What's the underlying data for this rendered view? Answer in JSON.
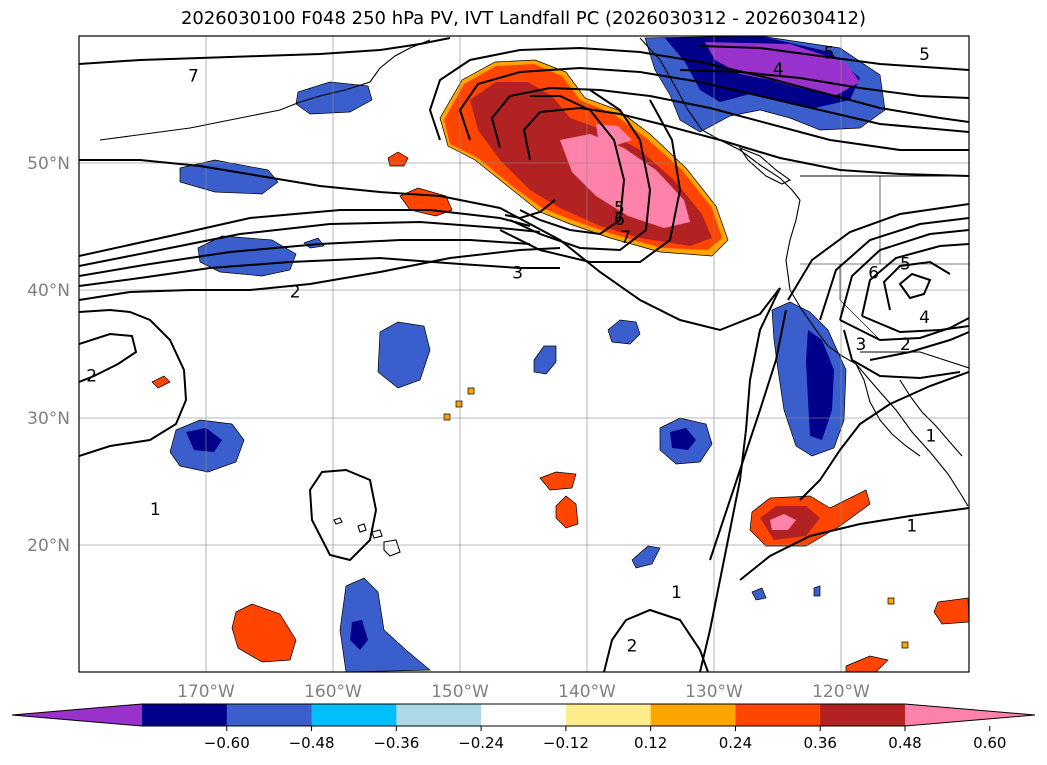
{
  "title": "2026030100 F048 250 hPa PV, IVT Landfall PC (2026030312 - 2026030412)",
  "map": {
    "lon_range": [
      180,
      110
    ],
    "lat_range": [
      10,
      60
    ],
    "lon_ticks": [
      {
        "lon": 170,
        "label": "170°W"
      },
      {
        "lon": 160,
        "label": "160°W"
      },
      {
        "lon": 150,
        "label": "150°W"
      },
      {
        "lon": 140,
        "label": "140°W"
      },
      {
        "lon": 130,
        "label": "130°W"
      },
      {
        "lon": 120,
        "label": "120°W"
      }
    ],
    "lat_ticks": [
      {
        "lat": 50,
        "label": "50°N"
      },
      {
        "lat": 40,
        "label": "40°N"
      },
      {
        "lat": 30,
        "label": "30°N"
      },
      {
        "lat": 20,
        "label": "20°N"
      }
    ],
    "gridlines": true
  },
  "contour_labels": [
    {
      "text": "7",
      "lon": 171.0,
      "lat": 56.9
    },
    {
      "text": "5",
      "lon": 137.5,
      "lat": 46.5
    },
    {
      "text": "6",
      "lon": 137.5,
      "lat": 45.6
    },
    {
      "text": "7",
      "lon": 137.0,
      "lat": 44.2
    },
    {
      "text": "3",
      "lon": 145.5,
      "lat": 41.4
    },
    {
      "text": "2",
      "lon": 163.0,
      "lat": 39.9
    },
    {
      "text": "2",
      "lon": 179.0,
      "lat": 33.3
    },
    {
      "text": "4",
      "lon": 125.0,
      "lat": 57.4
    },
    {
      "text": "5",
      "lon": 121.0,
      "lat": 58.7
    },
    {
      "text": "5",
      "lon": 113.5,
      "lat": 58.6
    },
    {
      "text": "5",
      "lon": 115.0,
      "lat": 42.1
    },
    {
      "text": "6",
      "lon": 117.5,
      "lat": 41.4
    },
    {
      "text": "4",
      "lon": 113.5,
      "lat": 37.9
    },
    {
      "text": "3",
      "lon": 118.5,
      "lat": 35.8
    },
    {
      "text": "2",
      "lon": 115.0,
      "lat": 35.8
    },
    {
      "text": "1",
      "lon": 174.0,
      "lat": 22.8
    },
    {
      "text": "1",
      "lon": 113.0,
      "lat": 28.6
    },
    {
      "text": "1",
      "lon": 114.5,
      "lat": 21.5
    },
    {
      "text": "1",
      "lon": 133.0,
      "lat": 16.3
    },
    {
      "text": "2",
      "lon": 136.5,
      "lat": 12.1
    }
  ],
  "legend": {
    "colors": [
      "#9932CC",
      "#00008B",
      "#3A5FCD",
      "#00BFFF",
      "#ADD8E6",
      "#FFFFFF",
      "#FFEC8B",
      "#FFA500",
      "#FF4500",
      "#B22222",
      "#FF82AB"
    ],
    "tick_labels": [
      "−0.60",
      "−0.48",
      "−0.36",
      "−0.24",
      "−0.12",
      "0.12",
      "0.24",
      "0.36",
      "0.48",
      "0.60"
    ]
  }
}
